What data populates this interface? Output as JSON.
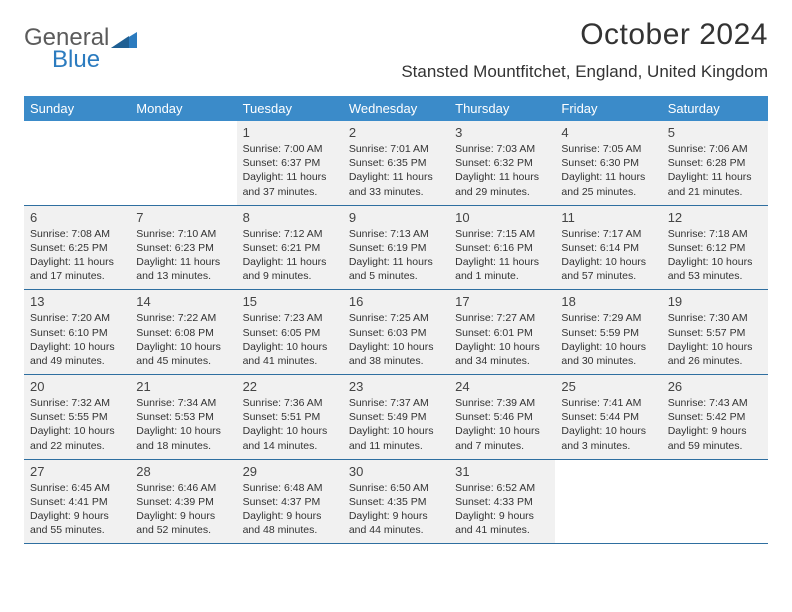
{
  "brand": {
    "part1": "General",
    "part2": "Blue"
  },
  "title": "October 2024",
  "location": "Stansted Mountfitchet, England, United Kingdom",
  "colors": {
    "header_bg": "#3b8bc9",
    "header_text": "#ffffff",
    "row_border": "#2f6fa0",
    "cell_fill": "#f1f1f1",
    "text": "#333333"
  },
  "days_of_week": [
    "Sunday",
    "Monday",
    "Tuesday",
    "Wednesday",
    "Thursday",
    "Friday",
    "Saturday"
  ],
  "weeks": [
    [
      {
        "blank": true
      },
      {
        "blank": true
      },
      {
        "n": "1",
        "sr": "Sunrise: 7:00 AM",
        "ss": "Sunset: 6:37 PM",
        "dl1": "Daylight: 11 hours",
        "dl2": "and 37 minutes."
      },
      {
        "n": "2",
        "sr": "Sunrise: 7:01 AM",
        "ss": "Sunset: 6:35 PM",
        "dl1": "Daylight: 11 hours",
        "dl2": "and 33 minutes."
      },
      {
        "n": "3",
        "sr": "Sunrise: 7:03 AM",
        "ss": "Sunset: 6:32 PM",
        "dl1": "Daylight: 11 hours",
        "dl2": "and 29 minutes."
      },
      {
        "n": "4",
        "sr": "Sunrise: 7:05 AM",
        "ss": "Sunset: 6:30 PM",
        "dl1": "Daylight: 11 hours",
        "dl2": "and 25 minutes."
      },
      {
        "n": "5",
        "sr": "Sunrise: 7:06 AM",
        "ss": "Sunset: 6:28 PM",
        "dl1": "Daylight: 11 hours",
        "dl2": "and 21 minutes."
      }
    ],
    [
      {
        "n": "6",
        "sr": "Sunrise: 7:08 AM",
        "ss": "Sunset: 6:25 PM",
        "dl1": "Daylight: 11 hours",
        "dl2": "and 17 minutes."
      },
      {
        "n": "7",
        "sr": "Sunrise: 7:10 AM",
        "ss": "Sunset: 6:23 PM",
        "dl1": "Daylight: 11 hours",
        "dl2": "and 13 minutes."
      },
      {
        "n": "8",
        "sr": "Sunrise: 7:12 AM",
        "ss": "Sunset: 6:21 PM",
        "dl1": "Daylight: 11 hours",
        "dl2": "and 9 minutes."
      },
      {
        "n": "9",
        "sr": "Sunrise: 7:13 AM",
        "ss": "Sunset: 6:19 PM",
        "dl1": "Daylight: 11 hours",
        "dl2": "and 5 minutes."
      },
      {
        "n": "10",
        "sr": "Sunrise: 7:15 AM",
        "ss": "Sunset: 6:16 PM",
        "dl1": "Daylight: 11 hours",
        "dl2": "and 1 minute."
      },
      {
        "n": "11",
        "sr": "Sunrise: 7:17 AM",
        "ss": "Sunset: 6:14 PM",
        "dl1": "Daylight: 10 hours",
        "dl2": "and 57 minutes."
      },
      {
        "n": "12",
        "sr": "Sunrise: 7:18 AM",
        "ss": "Sunset: 6:12 PM",
        "dl1": "Daylight: 10 hours",
        "dl2": "and 53 minutes."
      }
    ],
    [
      {
        "n": "13",
        "sr": "Sunrise: 7:20 AM",
        "ss": "Sunset: 6:10 PM",
        "dl1": "Daylight: 10 hours",
        "dl2": "and 49 minutes."
      },
      {
        "n": "14",
        "sr": "Sunrise: 7:22 AM",
        "ss": "Sunset: 6:08 PM",
        "dl1": "Daylight: 10 hours",
        "dl2": "and 45 minutes."
      },
      {
        "n": "15",
        "sr": "Sunrise: 7:23 AM",
        "ss": "Sunset: 6:05 PM",
        "dl1": "Daylight: 10 hours",
        "dl2": "and 41 minutes."
      },
      {
        "n": "16",
        "sr": "Sunrise: 7:25 AM",
        "ss": "Sunset: 6:03 PM",
        "dl1": "Daylight: 10 hours",
        "dl2": "and 38 minutes."
      },
      {
        "n": "17",
        "sr": "Sunrise: 7:27 AM",
        "ss": "Sunset: 6:01 PM",
        "dl1": "Daylight: 10 hours",
        "dl2": "and 34 minutes."
      },
      {
        "n": "18",
        "sr": "Sunrise: 7:29 AM",
        "ss": "Sunset: 5:59 PM",
        "dl1": "Daylight: 10 hours",
        "dl2": "and 30 minutes."
      },
      {
        "n": "19",
        "sr": "Sunrise: 7:30 AM",
        "ss": "Sunset: 5:57 PM",
        "dl1": "Daylight: 10 hours",
        "dl2": "and 26 minutes."
      }
    ],
    [
      {
        "n": "20",
        "sr": "Sunrise: 7:32 AM",
        "ss": "Sunset: 5:55 PM",
        "dl1": "Daylight: 10 hours",
        "dl2": "and 22 minutes."
      },
      {
        "n": "21",
        "sr": "Sunrise: 7:34 AM",
        "ss": "Sunset: 5:53 PM",
        "dl1": "Daylight: 10 hours",
        "dl2": "and 18 minutes."
      },
      {
        "n": "22",
        "sr": "Sunrise: 7:36 AM",
        "ss": "Sunset: 5:51 PM",
        "dl1": "Daylight: 10 hours",
        "dl2": "and 14 minutes."
      },
      {
        "n": "23",
        "sr": "Sunrise: 7:37 AM",
        "ss": "Sunset: 5:49 PM",
        "dl1": "Daylight: 10 hours",
        "dl2": "and 11 minutes."
      },
      {
        "n": "24",
        "sr": "Sunrise: 7:39 AM",
        "ss": "Sunset: 5:46 PM",
        "dl1": "Daylight: 10 hours",
        "dl2": "and 7 minutes."
      },
      {
        "n": "25",
        "sr": "Sunrise: 7:41 AM",
        "ss": "Sunset: 5:44 PM",
        "dl1": "Daylight: 10 hours",
        "dl2": "and 3 minutes."
      },
      {
        "n": "26",
        "sr": "Sunrise: 7:43 AM",
        "ss": "Sunset: 5:42 PM",
        "dl1": "Daylight: 9 hours",
        "dl2": "and 59 minutes."
      }
    ],
    [
      {
        "n": "27",
        "sr": "Sunrise: 6:45 AM",
        "ss": "Sunset: 4:41 PM",
        "dl1": "Daylight: 9 hours",
        "dl2": "and 55 minutes."
      },
      {
        "n": "28",
        "sr": "Sunrise: 6:46 AM",
        "ss": "Sunset: 4:39 PM",
        "dl1": "Daylight: 9 hours",
        "dl2": "and 52 minutes."
      },
      {
        "n": "29",
        "sr": "Sunrise: 6:48 AM",
        "ss": "Sunset: 4:37 PM",
        "dl1": "Daylight: 9 hours",
        "dl2": "and 48 minutes."
      },
      {
        "n": "30",
        "sr": "Sunrise: 6:50 AM",
        "ss": "Sunset: 4:35 PM",
        "dl1": "Daylight: 9 hours",
        "dl2": "and 44 minutes."
      },
      {
        "n": "31",
        "sr": "Sunrise: 6:52 AM",
        "ss": "Sunset: 4:33 PM",
        "dl1": "Daylight: 9 hours",
        "dl2": "and 41 minutes."
      },
      {
        "blank": true
      },
      {
        "blank": true
      }
    ]
  ]
}
